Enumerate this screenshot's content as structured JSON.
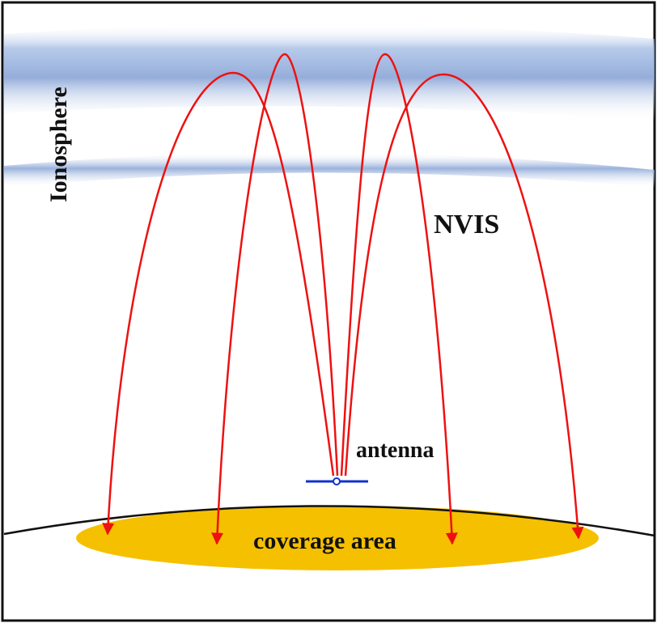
{
  "labels": {
    "ionosphere": "Ionosphere",
    "nvis": "NVIS",
    "antenna": "antenna",
    "coverage": "coverage area"
  },
  "colors": {
    "ray": "#ee1111",
    "ionosphere_band": "#9db6e0",
    "coverage_fill": "#f5c000",
    "antenna": "#1133cc",
    "ground": "#111111",
    "frame": "#111111"
  },
  "icons": {
    "ray_head": "arrow-head-icon",
    "antenna_feed": "antenna-icon"
  }
}
